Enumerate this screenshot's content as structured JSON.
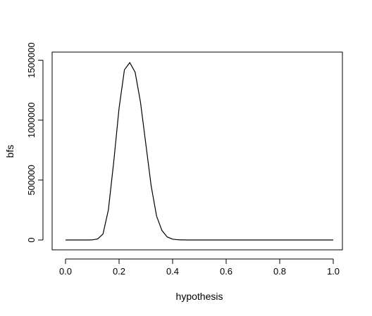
{
  "chart_data": {
    "type": "line",
    "title": "",
    "xlabel": "hypothesis",
    "ylabel": "bfs",
    "xlim": [
      0,
      1
    ],
    "ylim": [
      0,
      1480000
    ],
    "x_ticks": [
      0.0,
      0.2,
      0.4,
      0.6,
      0.8,
      1.0
    ],
    "x_tick_labels": [
      "0.0",
      "0.2",
      "0.4",
      "0.6",
      "0.8",
      "1.0"
    ],
    "y_ticks": [
      0,
      500000,
      1000000,
      1500000
    ],
    "y_tick_labels": [
      "0",
      "500000",
      "1000000",
      "1500000"
    ],
    "grid": false,
    "series": [
      {
        "color": "#000000",
        "x": [
          0.0,
          0.02,
          0.04,
          0.06,
          0.08,
          0.1,
          0.12,
          0.14,
          0.16,
          0.18,
          0.2,
          0.22,
          0.24,
          0.26,
          0.28,
          0.3,
          0.32,
          0.34,
          0.36,
          0.38,
          0.4,
          0.42,
          0.44,
          0.46,
          0.48,
          0.5,
          0.55,
          0.6,
          0.65,
          0.7,
          0.75,
          0.8,
          0.85,
          0.9,
          0.95,
          1.0
        ],
        "y": [
          0,
          0,
          0,
          0,
          0,
          1000,
          8000,
          50000,
          250000,
          650000,
          1100000,
          1420000,
          1480000,
          1400000,
          1150000,
          800000,
          450000,
          200000,
          80000,
          25000,
          7000,
          1500,
          300,
          0,
          0,
          0,
          0,
          0,
          0,
          0,
          0,
          0,
          0,
          0,
          0,
          0
        ]
      }
    ]
  }
}
